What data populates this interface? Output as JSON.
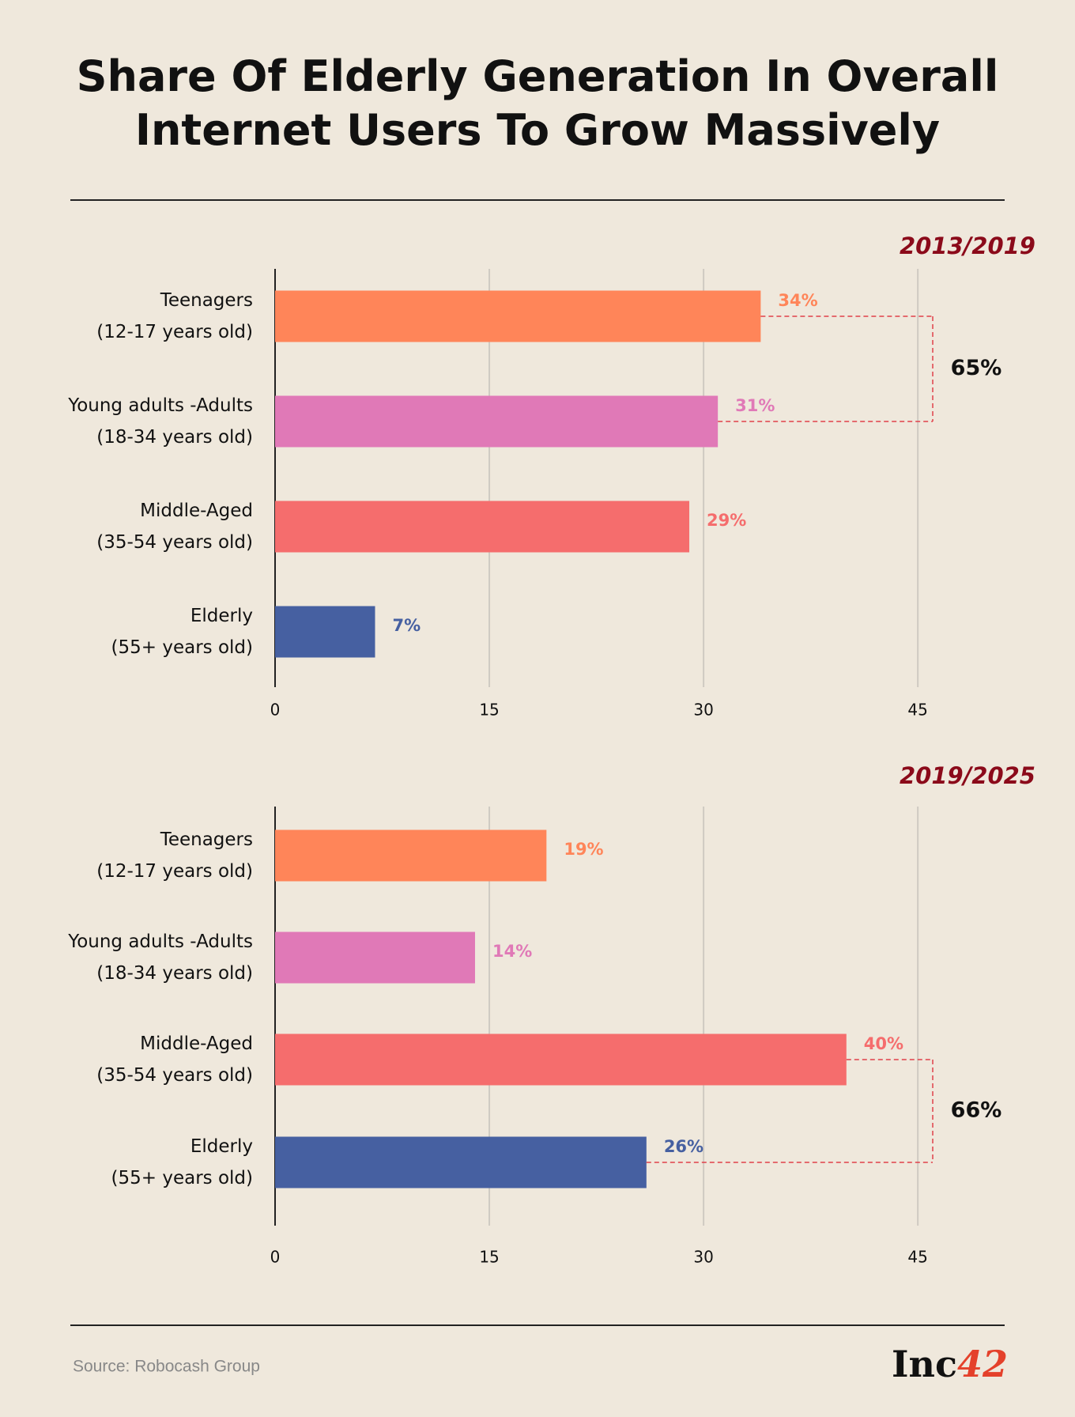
{
  "title": "Share Of Elderly Generation In Overall\nInternet Users To Grow Massively",
  "chart_data": [
    {
      "type": "bar",
      "orientation": "horizontal",
      "title": "2013/2019",
      "categories": [
        "Teenagers\n(12-17 years old)",
        "Young adults -Adults\n(18-34 years old)",
        "Middle-Aged\n(35-54 years old)",
        "Elderly\n(55+ years old)"
      ],
      "values": [
        34,
        31,
        29,
        7
      ],
      "value_labels": [
        "34%",
        "31%",
        "29%",
        "7%"
      ],
      "colors": [
        "#ff8559",
        "#e079b7",
        "#f56d6d",
        "#4660a1"
      ],
      "xlim": [
        0,
        50
      ],
      "xticks": [
        0,
        15,
        30,
        45
      ],
      "grid": true,
      "annotation": {
        "text": "65%"
      }
    },
    {
      "type": "bar",
      "orientation": "horizontal",
      "title": "2019/2025",
      "categories": [
        "Teenagers\n(12-17 years old)",
        "Young adults -Adults\n(18-34 years old)",
        "Middle-Aged\n(35-54 years old)",
        "Elderly\n(55+ years old)"
      ],
      "values": [
        19,
        14,
        40,
        26
      ],
      "value_labels": [
        "19%",
        "14%",
        "40%",
        "26%"
      ],
      "colors": [
        "#ff8559",
        "#e079b7",
        "#f56d6d",
        "#4660a1"
      ],
      "xlim": [
        0,
        50
      ],
      "xticks": [
        0,
        15,
        30,
        45
      ],
      "grid": true,
      "annotation": {
        "text": "66%"
      }
    }
  ],
  "source": "Source: Robocash Group",
  "brand": [
    "Inc",
    "42"
  ]
}
